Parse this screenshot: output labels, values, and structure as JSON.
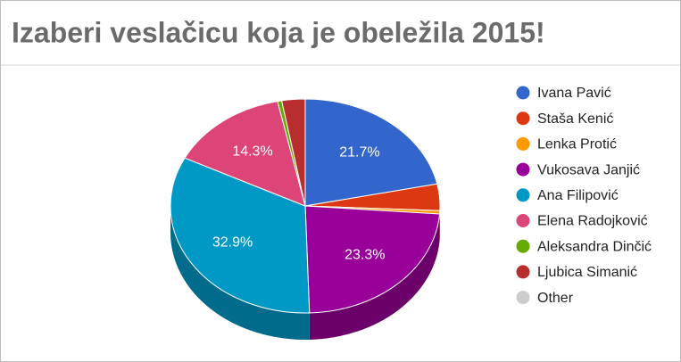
{
  "chart_data": {
    "type": "pie",
    "title": "Izaberi veslačicu koja je obeležila 2015!",
    "categories": [
      "Ivana Pavić",
      "Staša Kenić",
      "Lenka Protić",
      "Vukosava Janjić",
      "Ana Filipović",
      "Elena Radojković",
      "Aleksandra Dinčić",
      "Ljubica Simanić",
      "Other"
    ],
    "values": [
      21.7,
      4.0,
      0.5,
      23.3,
      32.9,
      14.3,
      0.5,
      2.8,
      0
    ],
    "value_labels": [
      "21.7%",
      null,
      null,
      "23.3%",
      "32.9%",
      "14.3%",
      null,
      null,
      null
    ],
    "colors": [
      "#3366cc",
      "#dc3912",
      "#ff9900",
      "#990099",
      "#0099c6",
      "#dd4477",
      "#66aa00",
      "#b82e2e",
      "#cccccc"
    ],
    "legend": "right"
  }
}
